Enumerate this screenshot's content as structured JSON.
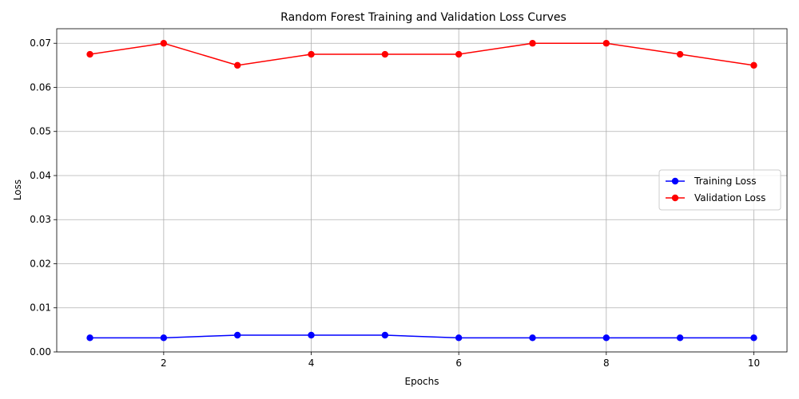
{
  "chart_data": {
    "type": "line",
    "title": "Random Forest Training and Validation Loss Curves",
    "xlabel": "Epochs",
    "ylabel": "Loss",
    "x": [
      1,
      2,
      3,
      4,
      5,
      6,
      7,
      8,
      9,
      10
    ],
    "xlim": [
      0.55,
      10.45
    ],
    "ylim": [
      0.0,
      0.0733
    ],
    "xticks": [
      2,
      4,
      6,
      8,
      10
    ],
    "xtick_labels": [
      "2",
      "4",
      "6",
      "8",
      "10"
    ],
    "yticks": [
      0.0,
      0.01,
      0.02,
      0.03,
      0.04,
      0.05,
      0.06,
      0.07
    ],
    "ytick_labels": [
      "0.00",
      "0.01",
      "0.02",
      "0.03",
      "0.04",
      "0.05",
      "0.06",
      "0.07"
    ],
    "grid": true,
    "legend_position": "center-right",
    "series": [
      {
        "name": "Training Loss",
        "color": "#0000ff",
        "marker": "circle",
        "values": [
          0.0032,
          0.0032,
          0.0038,
          0.0038,
          0.0038,
          0.0032,
          0.0032,
          0.0032,
          0.0032,
          0.0032
        ]
      },
      {
        "name": "Validation Loss",
        "color": "#ff0000",
        "marker": "circle",
        "values": [
          0.0675,
          0.07,
          0.065,
          0.0675,
          0.0675,
          0.0675,
          0.07,
          0.07,
          0.0675,
          0.065
        ]
      }
    ]
  }
}
